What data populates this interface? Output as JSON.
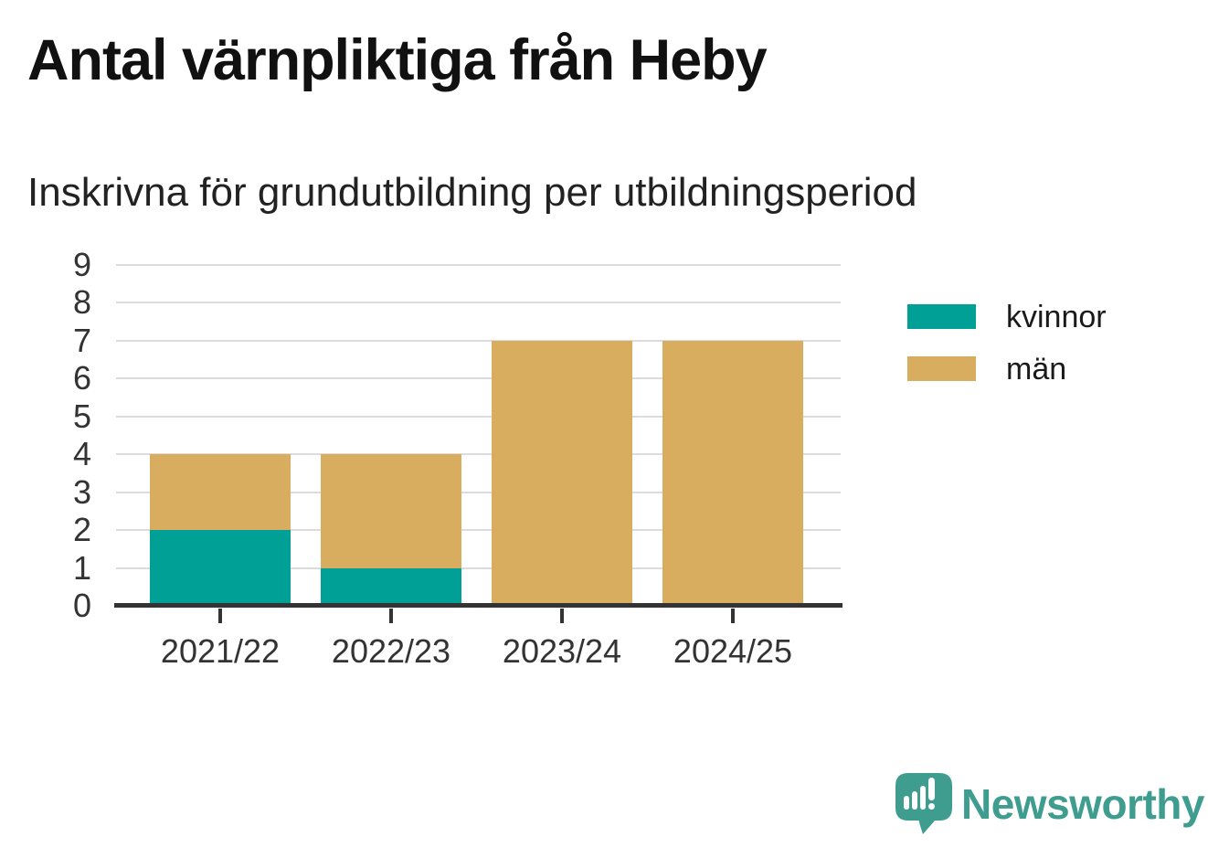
{
  "title": "Antal värnpliktiga från Heby",
  "subtitle": "Inskrivna för grundutbildning per utbildningsperiod",
  "chart_data": {
    "type": "bar",
    "stacked": true,
    "title": "Antal värnpliktiga från Heby",
    "subtitle": "Inskrivna för grundutbildning per utbildningsperiod",
    "categories": [
      "2021/22",
      "2022/23",
      "2023/24",
      "2024/25"
    ],
    "series": [
      {
        "name": "kvinnor",
        "color": "#00a096",
        "values": [
          2,
          1,
          0,
          0
        ]
      },
      {
        "name": "män",
        "color": "#d9ad5f",
        "values": [
          2,
          3,
          7,
          7
        ]
      }
    ],
    "totals": [
      4,
      4,
      7,
      7
    ],
    "xlabel": "",
    "ylabel": "",
    "ylim": [
      0,
      9
    ],
    "yticks": [
      0,
      1,
      2,
      3,
      4,
      5,
      6,
      7,
      8,
      9
    ],
    "grid": true,
    "legend_position": "right"
  },
  "branding": {
    "logo_text": "Newsworthy",
    "logo_color": "#3f9d8f"
  },
  "colors": {
    "grid": "#dcdcdc",
    "axis": "#333333",
    "title_text": "#111111",
    "body_text": "#222222"
  }
}
